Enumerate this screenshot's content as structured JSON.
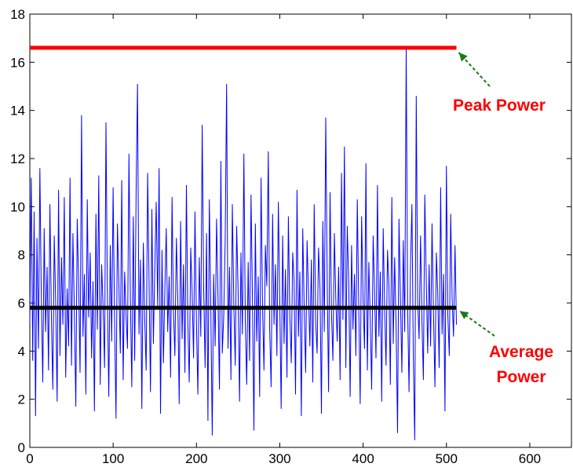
{
  "chart_data": {
    "type": "line",
    "title": "",
    "xlabel": "",
    "ylabel": "",
    "xlim": [
      0,
      650
    ],
    "ylim": [
      0,
      18
    ],
    "xticks": [
      0,
      100,
      200,
      300,
      400,
      500,
      600
    ],
    "yticks": [
      0,
      2,
      4,
      6,
      8,
      10,
      12,
      14,
      16,
      18
    ],
    "grid": false,
    "legend": "none",
    "colors": {
      "signal": "#0000ff",
      "peak": "#ff0000",
      "average": "#000000",
      "arrow": "#1a7a1a"
    },
    "series": [
      {
        "values": [
          5.2,
          11.2,
          3.6,
          9.8,
          1.3,
          8.7,
          4.1,
          11.6,
          6.3,
          2.7,
          9.1,
          4.8,
          7.5,
          3.2,
          10.1,
          5.6,
          2.4,
          8.8,
          6.1,
          1.9,
          10.7,
          3.8,
          7.9,
          5.1,
          10.4,
          2.9,
          6.6,
          4.2,
          11.2,
          3.4,
          8.9,
          5.7,
          1.7,
          9.5,
          6.8,
          3.1,
          13.8,
          4.6,
          7.2,
          2.2,
          10.3,
          5.4,
          8.1,
          3.7,
          6.9,
          1.5,
          9.7,
          4.9,
          11.3,
          2.6,
          7.6,
          5.9,
          3.3,
          13.5,
          6.4,
          2.1,
          8.4,
          4.4,
          10.8,
          5.2,
          1.2,
          9.3,
          6.7,
          3.9,
          11.1,
          2.8,
          7.3,
          5.5,
          4.1,
          12.2,
          6.2,
          2.5,
          9.6,
          3.6,
          10.6,
          15.1,
          4.7,
          7.8,
          1.6,
          8.5,
          5.3,
          3.2,
          11.4,
          6.9,
          2.3,
          9.9,
          4.3,
          7.4,
          10.2,
          5.8,
          11.6,
          1.4,
          8.2,
          3.5,
          6.5,
          9.1,
          4.8,
          7.1,
          2.9,
          10.4,
          5.6,
          3.8,
          8.7,
          6.1,
          1.8,
          9.4,
          4.5,
          7.6,
          3.1,
          10.9,
          5.2,
          2.7,
          8.3,
          6.4,
          3.7,
          9.8,
          5.1,
          2.2,
          7.9,
          4.6,
          13.4,
          6.8,
          3.3,
          8.9,
          1.1,
          10.3,
          5.7,
          0.5,
          7.2,
          4.2,
          9.5,
          6.3,
          2.4,
          11.9,
          3.9,
          5.4,
          8.6,
          15.1,
          4.1,
          7.5,
          2.8,
          10.1,
          5.9,
          3.4,
          9.2,
          6.6,
          1.9,
          8.1,
          4.7,
          12.2,
          5.3,
          2.6,
          7.7,
          3.6,
          10.5,
          6.2,
          0.7,
          9.3,
          4.4,
          7.1,
          2.1,
          11.2,
          5.8,
          3.2,
          8.4,
          6.7,
          12.3,
          4.9,
          2.5,
          9.7,
          5.1,
          7.6,
          3.8,
          10.2,
          6.1,
          1.6,
          8.8,
          4.3,
          7.4,
          2.9,
          9.6,
          5.5,
          3.5,
          8.1,
          6.9,
          2.2,
          10.7,
          4.6,
          7.3,
          1.3,
          9.1,
          5.9,
          3.1,
          8.6,
          6.4,
          4.2,
          7.8,
          2.7,
          10.1,
          5.2,
          3.9,
          8.3,
          6.6,
          1.4,
          9.4,
          4.8,
          13.7,
          7.1,
          2.3,
          10.6,
          5.6,
          3.6,
          8.9,
          6.2,
          4.4,
          7.5,
          2.8,
          11.4,
          5.3,
          12.5,
          3.3,
          9.2,
          6.8,
          2.1,
          8.4,
          4.9,
          7.2,
          3.8,
          10.3,
          5.7,
          1.8,
          9.6,
          6.1,
          4.1,
          11.8,
          3.2,
          7.7,
          5.4,
          2.4,
          8.8,
          6.5,
          3.7,
          10.9,
          4.6,
          7.3,
          1.9,
          9.1,
          5.8,
          3.4,
          8.2,
          6.7,
          2.6,
          10.4,
          4.3,
          7.9,
          5.1,
          0.6,
          9.5,
          6.3,
          3.1,
          8.6,
          4.8,
          16.6,
          5.9,
          2.3,
          7.4,
          10.1,
          3.6,
          0.3,
          14.6,
          6.1,
          4.5,
          8.8,
          5.2,
          2.8,
          10.5,
          6.9,
          3.9,
          7.6,
          4.2,
          9.3,
          5.7,
          2.5,
          8.1,
          6.4,
          3.3,
          10.8,
          4.7,
          7.2,
          1.5,
          11.7,
          5.5,
          3.8,
          9.7,
          6.2,
          4.6,
          8.4,
          5.1
        ]
      }
    ],
    "reference_lines": [
      {
        "y": 16.6,
        "x_end": 512,
        "label": "Peak Power"
      },
      {
        "y": 5.8,
        "x_end": 512,
        "label": "Average Power"
      }
    ],
    "annotations": {
      "peak": [
        "Peak Power"
      ],
      "average": [
        "Average",
        "Power"
      ]
    }
  }
}
